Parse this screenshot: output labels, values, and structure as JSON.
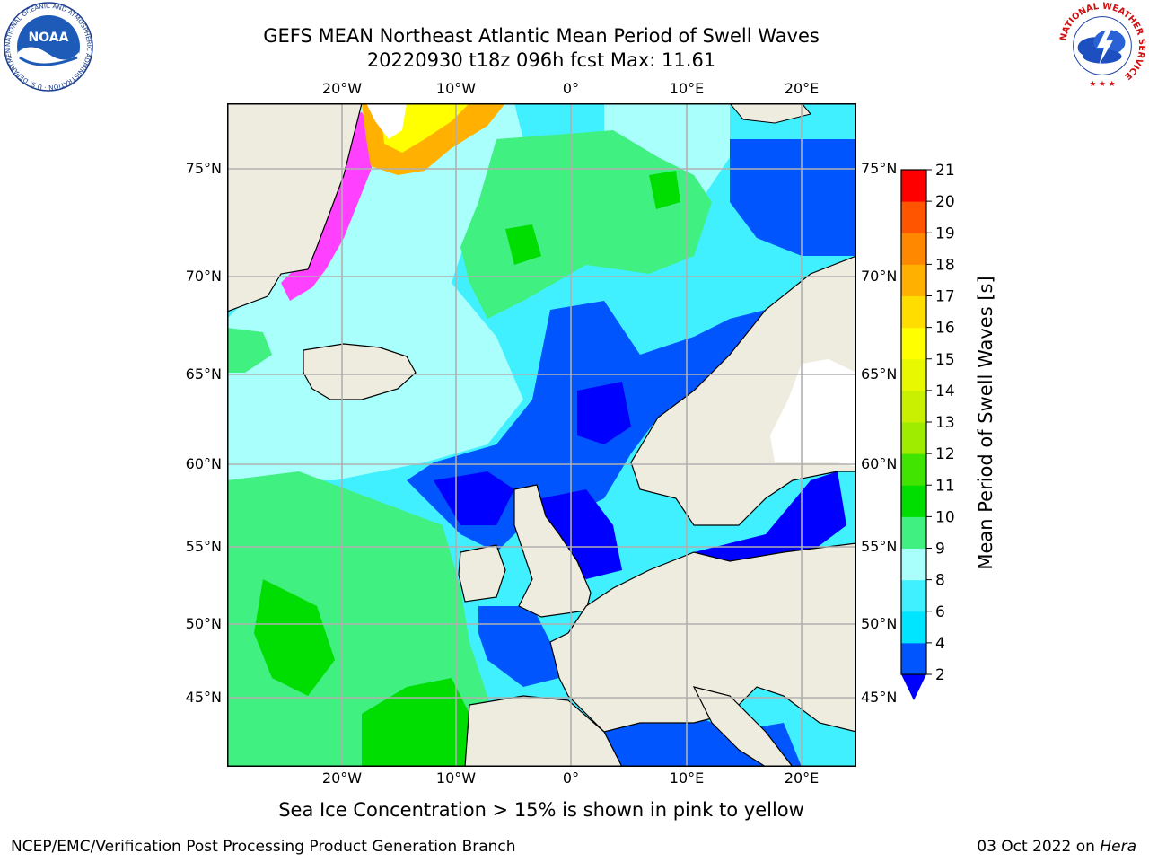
{
  "header": {
    "title_line1": "GEFS MEAN Northeast Atlantic Mean Period of Swell Waves",
    "title_line2": "20220930 t18z 096h fcst   Max: 11.61"
  },
  "map": {
    "lon_labels": [
      "20°W",
      "10°W",
      "0°",
      "10°E",
      "20°E"
    ],
    "lat_labels": [
      "75°N",
      "70°N",
      "65°N",
      "60°N",
      "55°N",
      "50°N",
      "45°N"
    ],
    "land_color": "#eeecdf",
    "grid_color": "#b0b0b0"
  },
  "colorbar": {
    "label": "Mean Period of Swell Waves [s]",
    "ticks": [
      "2",
      "4",
      "6",
      "8",
      "9",
      "10",
      "11",
      "12",
      "13",
      "14",
      "15",
      "16",
      "17",
      "18",
      "19",
      "20",
      "21"
    ],
    "colors": [
      "#0055ff",
      "#00e5ff",
      "#40f0ff",
      "#a8fffb",
      "#40f080",
      "#00dd00",
      "#40e400",
      "#a0ec00",
      "#c8f000",
      "#e8f800",
      "#ffff00",
      "#ffdd00",
      "#ffb000",
      "#ff8800",
      "#ff5500",
      "#ff0000"
    ],
    "under_color": "#0000ff"
  },
  "caption": "Sea Ice Concentration > 15% is shown in pink to yellow",
  "footer": {
    "left": "NCEP/EMC/Verification Post Processing Product Generation Branch",
    "date": "03 Oct 2022 on ",
    "machine": "Hera"
  },
  "logos": {
    "noaa_text": "NOAA",
    "noaa_ring": "NATIONAL OCEANIC AND ATMOSPHERIC ADMINISTRATION · U.S. DEPARTMENT OF COMMERCE ·",
    "nws_ring": "NATIONAL WEATHER SERVICE"
  }
}
